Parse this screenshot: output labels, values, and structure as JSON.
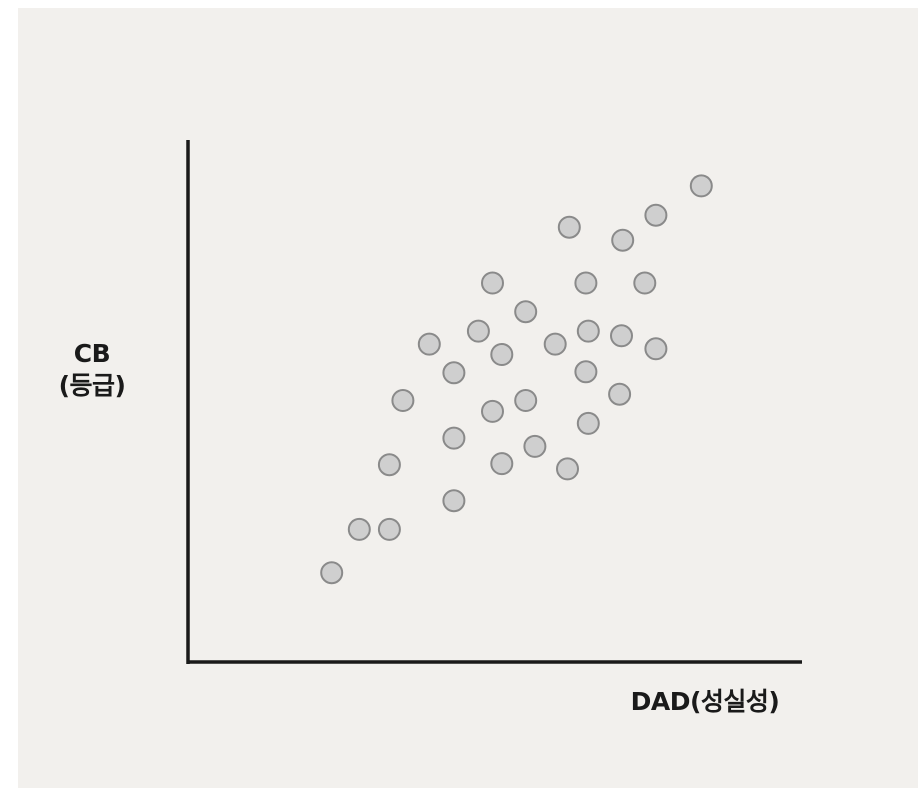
{
  "chart_data": {
    "type": "scatter",
    "title": "",
    "xlabel": "DAD(성실성)",
    "ylabel_line1": "CB",
    "ylabel_line2": "(등급)",
    "xlim": [
      0,
      100
    ],
    "ylim": [
      0,
      100
    ],
    "grid": false,
    "legend": "none",
    "axis_color": "#1a1a1a",
    "point_fill": "#cfcfcf",
    "point_stroke": "#8a8a8a",
    "points": [
      {
        "x": 23.4,
        "y": 17.1
      },
      {
        "x": 27.9,
        "y": 25.4
      },
      {
        "x": 32.8,
        "y": 25.4
      },
      {
        "x": 32.8,
        "y": 37.8
      },
      {
        "x": 35.0,
        "y": 50.1
      },
      {
        "x": 39.3,
        "y": 60.9
      },
      {
        "x": 43.3,
        "y": 30.9
      },
      {
        "x": 43.3,
        "y": 42.9
      },
      {
        "x": 43.3,
        "y": 55.4
      },
      {
        "x": 47.3,
        "y": 63.4
      },
      {
        "x": 49.6,
        "y": 48.0
      },
      {
        "x": 49.6,
        "y": 72.6
      },
      {
        "x": 51.1,
        "y": 38.0
      },
      {
        "x": 51.1,
        "y": 58.9
      },
      {
        "x": 55.0,
        "y": 50.1
      },
      {
        "x": 55.0,
        "y": 67.1
      },
      {
        "x": 56.5,
        "y": 41.3
      },
      {
        "x": 59.8,
        "y": 60.9
      },
      {
        "x": 61.8,
        "y": 37.0
      },
      {
        "x": 62.1,
        "y": 83.3
      },
      {
        "x": 64.8,
        "y": 55.6
      },
      {
        "x": 64.8,
        "y": 72.6
      },
      {
        "x": 65.2,
        "y": 45.7
      },
      {
        "x": 65.2,
        "y": 63.4
      },
      {
        "x": 70.3,
        "y": 51.3
      },
      {
        "x": 70.6,
        "y": 62.5
      },
      {
        "x": 70.8,
        "y": 80.8
      },
      {
        "x": 74.4,
        "y": 72.6
      },
      {
        "x": 76.2,
        "y": 60.0
      },
      {
        "x": 76.2,
        "y": 85.6
      },
      {
        "x": 83.6,
        "y": 91.2
      }
    ]
  }
}
